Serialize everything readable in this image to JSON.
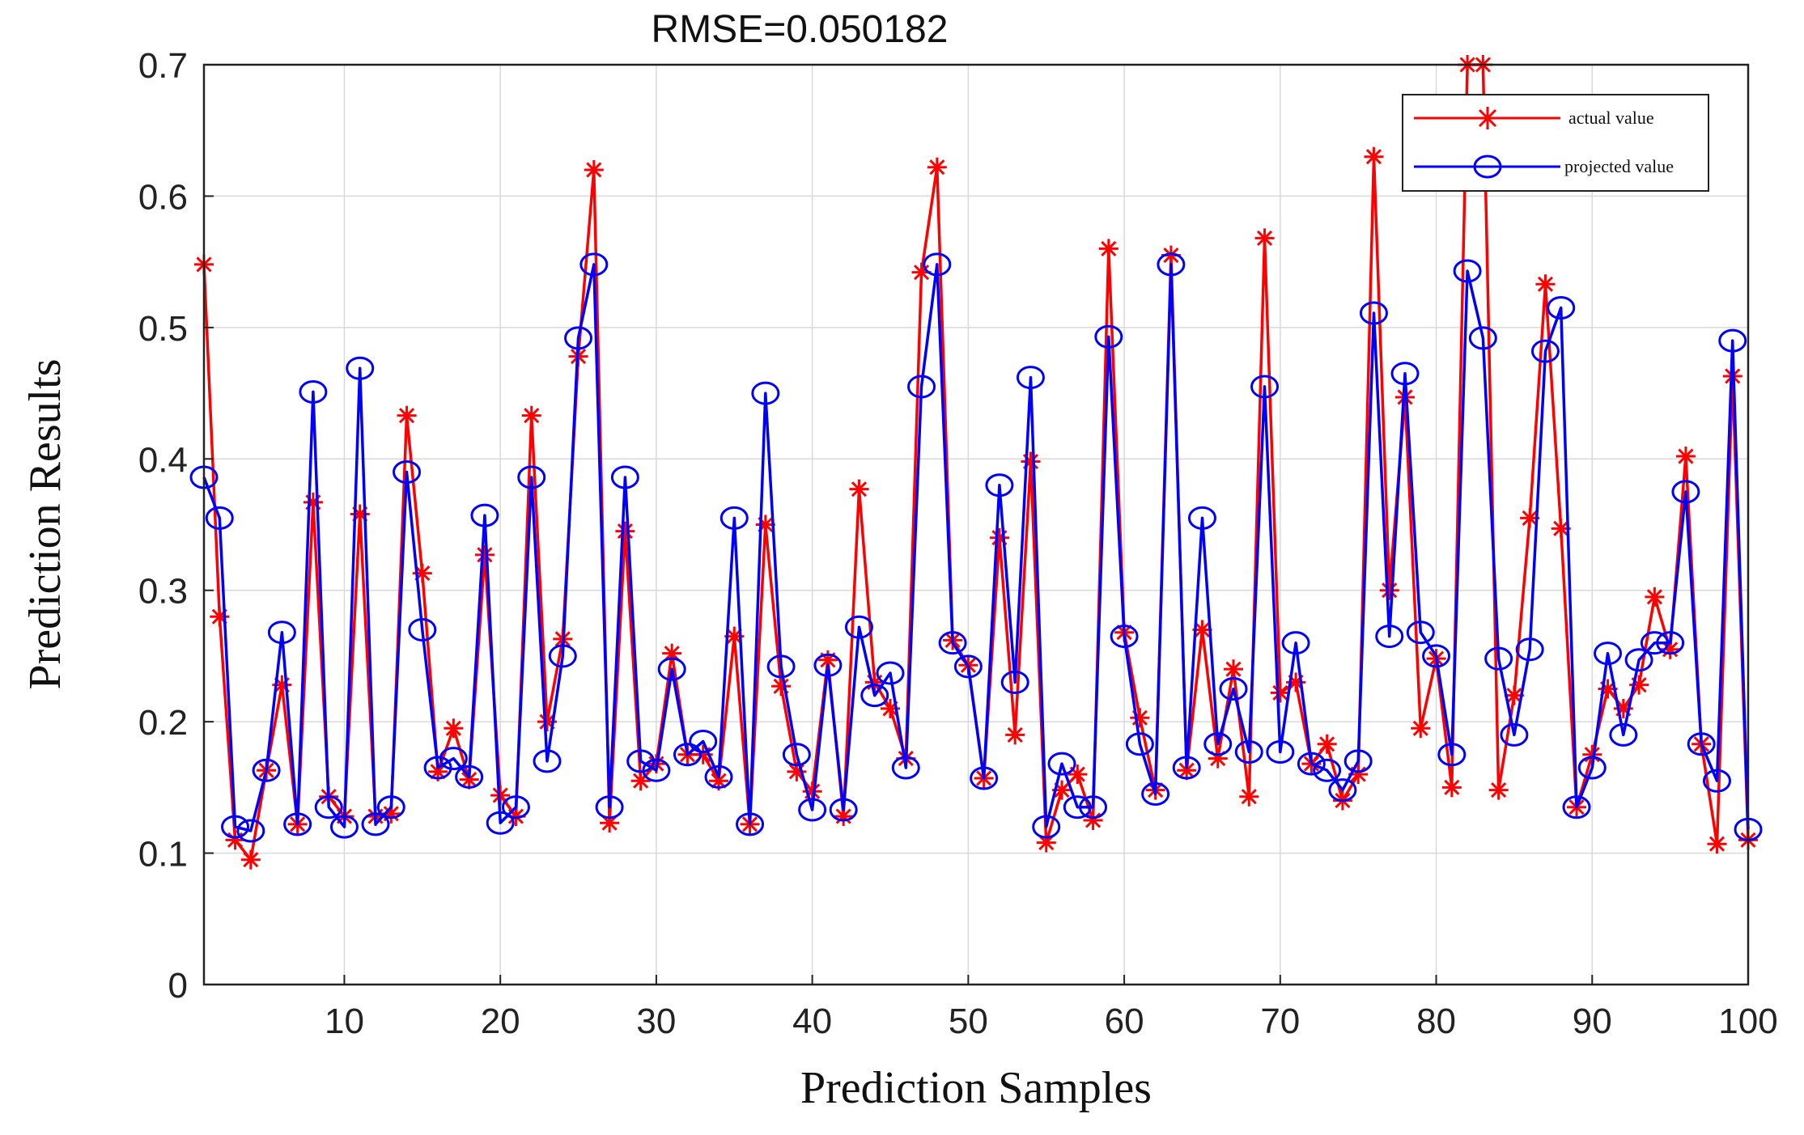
{
  "chart_data": {
    "type": "line",
    "title": "RMSE=0.050182",
    "xlabel": "Prediction Samples",
    "ylabel": "Prediction Results",
    "xlim": [
      1,
      100
    ],
    "ylim": [
      0,
      0.7
    ],
    "xticks": [
      10,
      20,
      30,
      40,
      50,
      60,
      70,
      80,
      90,
      100
    ],
    "yticks": [
      0,
      0.1,
      0.2,
      0.3,
      0.4,
      0.5,
      0.6,
      0.7
    ],
    "ytick_labels": [
      "0",
      "0.1",
      "0.2",
      "0.3",
      "0.4",
      "0.5",
      "0.6",
      "0.7"
    ],
    "grid": true,
    "legend": "top-right",
    "x": [
      1,
      2,
      3,
      4,
      5,
      6,
      7,
      8,
      9,
      10,
      11,
      12,
      13,
      14,
      15,
      16,
      17,
      18,
      19,
      20,
      21,
      22,
      23,
      24,
      25,
      26,
      27,
      28,
      29,
      30,
      31,
      32,
      33,
      34,
      35,
      36,
      37,
      38,
      39,
      40,
      41,
      42,
      43,
      44,
      45,
      46,
      47,
      48,
      49,
      50,
      51,
      52,
      53,
      54,
      55,
      56,
      57,
      58,
      59,
      60,
      61,
      62,
      63,
      64,
      65,
      66,
      67,
      68,
      69,
      70,
      71,
      72,
      73,
      74,
      75,
      76,
      77,
      78,
      79,
      80,
      81,
      82,
      83,
      84,
      85,
      86,
      87,
      88,
      89,
      90,
      91,
      92,
      93,
      94,
      95,
      96,
      97,
      98,
      99,
      100
    ],
    "series": [
      {
        "name": "actual value",
        "color": "#ff0000",
        "marker": "asterisk",
        "values": [
          0.548,
          0.28,
          0.11,
          0.095,
          0.163,
          0.228,
          0.122,
          0.367,
          0.143,
          0.128,
          0.358,
          0.128,
          0.13,
          0.433,
          0.313,
          0.162,
          0.195,
          0.156,
          0.327,
          0.144,
          0.128,
          0.433,
          0.2,
          0.263,
          0.478,
          0.62,
          0.123,
          0.345,
          0.155,
          0.168,
          0.252,
          0.175,
          0.175,
          0.155,
          0.265,
          0.122,
          0.35,
          0.227,
          0.162,
          0.147,
          0.247,
          0.128,
          0.377,
          0.23,
          0.21,
          0.172,
          0.542,
          0.622,
          0.262,
          0.243,
          0.157,
          0.34,
          0.19,
          0.398,
          0.108,
          0.148,
          0.16,
          0.125,
          0.56,
          0.268,
          0.203,
          0.148,
          0.555,
          0.163,
          0.27,
          0.172,
          0.24,
          0.143,
          0.568,
          0.222,
          0.23,
          0.168,
          0.183,
          0.14,
          0.16,
          0.63,
          0.3,
          0.447,
          0.195,
          0.248,
          0.15,
          0.7,
          0.7,
          0.148,
          0.22,
          0.355,
          0.533,
          0.347,
          0.135,
          0.175,
          0.225,
          0.21,
          0.228,
          0.295,
          0.255,
          0.402,
          0.183,
          0.107,
          0.463,
          0.11
        ]
      },
      {
        "name": "projected value",
        "color": "#0000ff",
        "marker": "circle",
        "values": [
          0.386,
          0.355,
          0.12,
          0.117,
          0.163,
          0.268,
          0.122,
          0.451,
          0.135,
          0.12,
          0.469,
          0.122,
          0.135,
          0.39,
          0.27,
          0.165,
          0.172,
          0.158,
          0.357,
          0.123,
          0.135,
          0.386,
          0.17,
          0.25,
          0.492,
          0.548,
          0.135,
          0.386,
          0.17,
          0.163,
          0.24,
          0.175,
          0.185,
          0.158,
          0.355,
          0.122,
          0.45,
          0.242,
          0.175,
          0.133,
          0.243,
          0.133,
          0.272,
          0.22,
          0.237,
          0.165,
          0.455,
          0.548,
          0.26,
          0.242,
          0.157,
          0.38,
          0.23,
          0.462,
          0.12,
          0.168,
          0.135,
          0.135,
          0.493,
          0.265,
          0.183,
          0.145,
          0.548,
          0.165,
          0.355,
          0.183,
          0.225,
          0.177,
          0.455,
          0.177,
          0.26,
          0.168,
          0.163,
          0.148,
          0.17,
          0.511,
          0.265,
          0.465,
          0.268,
          0.25,
          0.175,
          0.543,
          0.492,
          0.248,
          0.19,
          0.255,
          0.482,
          0.515,
          0.135,
          0.165,
          0.252,
          0.19,
          0.247,
          0.26,
          0.26,
          0.375,
          0.183,
          0.155,
          0.49,
          0.118
        ]
      }
    ]
  }
}
